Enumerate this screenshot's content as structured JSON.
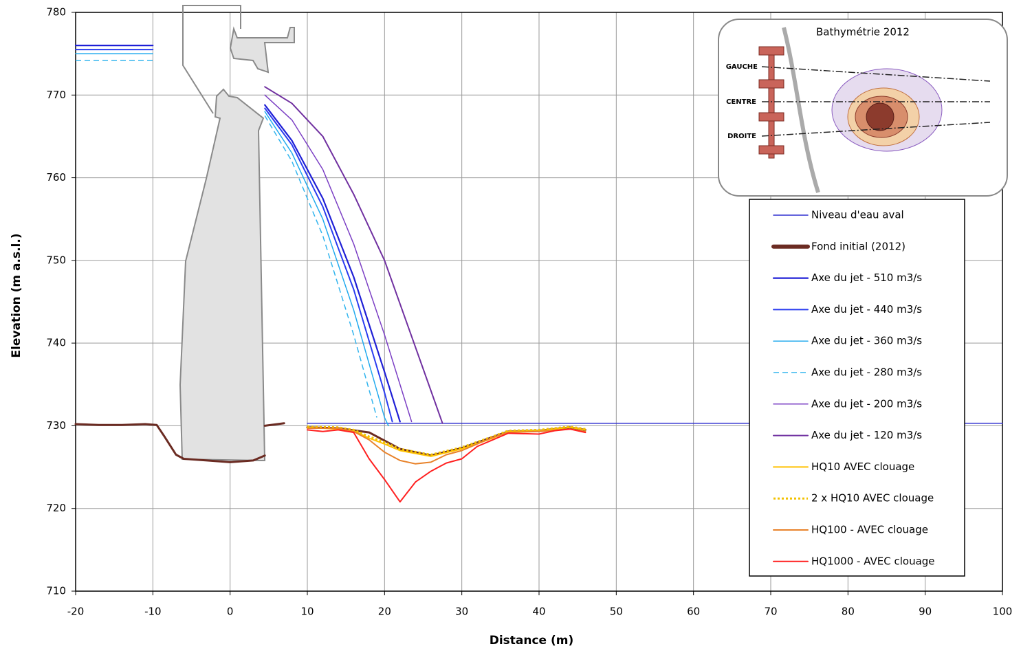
{
  "chart_data": {
    "type": "line",
    "xlabel": "Distance (m)",
    "ylabel": "Elevation (m a.s.l.)",
    "xlim": [
      -20,
      100
    ],
    "ylim": [
      710,
      780
    ],
    "xticks": [
      -20,
      -10,
      0,
      10,
      20,
      30,
      40,
      50,
      60,
      70,
      80,
      90,
      100
    ],
    "yticks": [
      710,
      720,
      730,
      740,
      750,
      760,
      770,
      780
    ],
    "grid": true,
    "inset": {
      "title": "Bathymétrie 2012",
      "labels": [
        "GAUCHE",
        "CENTRE",
        "DROITE"
      ]
    },
    "series": [
      {
        "name": "Niveau d'eau aval",
        "color": "#3030d0",
        "width": 1.5,
        "x": [
          10,
          100
        ],
        "values": [
          730.3,
          730.3
        ]
      },
      {
        "name": "Fond initial (2012)",
        "color": "#6b2b22",
        "width": 3,
        "legend_width": 6,
        "x": [
          -20,
          -17,
          -14,
          -11,
          -9.5,
          -8.5,
          -7,
          -6,
          -3,
          0,
          3,
          4.5,
          null,
          4.5,
          7,
          null,
          10,
          14,
          18,
          22,
          26,
          30,
          36,
          40,
          44,
          46
        ],
        "values": [
          730.2,
          730.1,
          730.1,
          730.2,
          730.1,
          728.7,
          726.5,
          726,
          725.8,
          725.6,
          725.8,
          726.4,
          null,
          730,
          730.3,
          null,
          729.8,
          729.7,
          729.2,
          727.2,
          726.4,
          727.3,
          729.3,
          729.4,
          729.8,
          729.5
        ]
      },
      {
        "name": "Axe du jet - 510 m3/s",
        "color": "#1f1fd6",
        "width": 2.2,
        "x": [
          -20,
          -10,
          null,
          4.5,
          8,
          12,
          16,
          20,
          22
        ],
        "values": [
          776,
          776,
          null,
          768.8,
          764.5,
          757.5,
          748,
          736.5,
          730.5
        ]
      },
      {
        "name": "Axe du jet - 440 m3/s",
        "color": "#2a3cf0",
        "width": 2,
        "x": [
          -20,
          -10,
          null,
          4.5,
          8,
          12,
          16,
          20,
          21
        ],
        "values": [
          775.5,
          775.5,
          null,
          768.4,
          764,
          756.5,
          746.5,
          734,
          730.5
        ]
      },
      {
        "name": "Axe du jet - 360 m3/s",
        "color": "#22aaee",
        "width": 1.5,
        "x": [
          -20,
          -10,
          null,
          4.5,
          8,
          12,
          16,
          20,
          20.5
        ],
        "values": [
          775,
          775,
          null,
          768,
          763,
          755,
          744,
          731,
          730
        ]
      },
      {
        "name": "Axe du jet - 280 m3/s",
        "color": "#33b5ee",
        "width": 1.5,
        "dash": "8,5",
        "x": [
          -20,
          -10,
          null,
          4.5,
          8,
          12,
          16,
          19
        ],
        "values": [
          774.2,
          774.2,
          null,
          767.5,
          762,
          753,
          741,
          731
        ]
      },
      {
        "name": "Axe du jet - 200 m3/s",
        "color": "#7b3fc4",
        "width": 1.5,
        "x": [
          4.5,
          8,
          12,
          16,
          20,
          23.5
        ],
        "values": [
          770,
          767,
          761,
          752,
          741,
          730.5
        ]
      },
      {
        "name": "Axe du jet - 120 m3/s",
        "color": "#7030a0",
        "width": 2,
        "x": [
          4.5,
          8,
          12,
          16,
          20,
          24,
          27.5
        ],
        "values": [
          771,
          769,
          765,
          758,
          750,
          739.5,
          730.3
        ]
      },
      {
        "name": "HQ10 AVEC clouage",
        "color": "#ffc000",
        "width": 2,
        "x": [
          10,
          14,
          16,
          18,
          20,
          22,
          26,
          30,
          34,
          36,
          40,
          44,
          46
        ],
        "values": [
          729.8,
          729.6,
          729.4,
          728.5,
          727.8,
          727,
          726.3,
          727.2,
          728.5,
          729.3,
          729.4,
          729.8,
          729.5
        ]
      },
      {
        "name": "2 x HQ10 AVEC clouage",
        "color": "#f2c200",
        "width": 3,
        "dash": "3,3",
        "x": [
          10,
          14,
          16,
          18,
          20,
          22,
          26,
          30,
          34,
          36,
          40,
          44,
          46
        ],
        "values": [
          729.9,
          729.8,
          729.5,
          728.7,
          728,
          727.2,
          726.5,
          727.4,
          728.7,
          729.4,
          729.5,
          729.9,
          729.6
        ]
      },
      {
        "name": "HQ100 - AVEC clouage",
        "color": "#e8822a",
        "width": 2,
        "x": [
          10,
          14,
          16,
          18,
          20,
          22,
          24,
          26,
          28,
          30,
          34,
          36,
          40,
          44,
          46
        ],
        "values": [
          729.7,
          729.7,
          729.3,
          728.3,
          726.8,
          725.8,
          725.4,
          725.6,
          726.5,
          727,
          728.6,
          729.2,
          729.3,
          729.6,
          729.3
        ]
      },
      {
        "name": "HQ1000 - AVEC clouage",
        "color": "#ff2020",
        "width": 2,
        "x": [
          10,
          12,
          14,
          16,
          18,
          20,
          22,
          24,
          26,
          28,
          30,
          32,
          34,
          36,
          40,
          42,
          44,
          46
        ],
        "values": [
          729.5,
          729.3,
          729.5,
          729.2,
          726,
          723.5,
          720.8,
          723.2,
          724.5,
          725.5,
          726,
          727.5,
          728.3,
          729.1,
          729,
          729.4,
          729.6,
          729.2
        ]
      }
    ]
  }
}
